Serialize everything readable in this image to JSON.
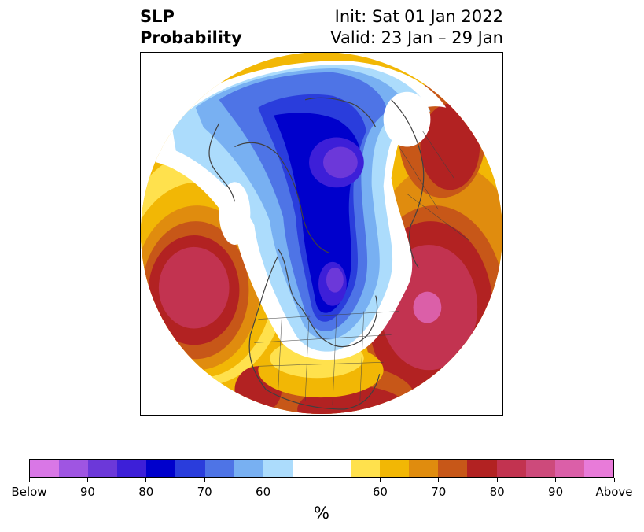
{
  "title": {
    "variable": "SLP",
    "product": "Probability",
    "init": "Init: Sat 01 Jan 2022",
    "valid": "Valid: 23 Jan – 29 Jan"
  },
  "map": {
    "projection": "north-polar-stereographic",
    "background": "white",
    "coastline_color": "#404040"
  },
  "colorbar": {
    "unit": "%",
    "colors": [
      "#d977e6",
      "#9f55e2",
      "#6c38d9",
      "#3d1fd8",
      "#0000cc",
      "#2a3ddc",
      "#4e74e6",
      "#78b0f2",
      "#acdcfc",
      "#ffffff",
      "#ffffff",
      "#ffe14d",
      "#f2b705",
      "#e08c0e",
      "#c75718",
      "#b22222",
      "#c23350",
      "#cd4a7b",
      "#db5fa8",
      "#e87bd9"
    ],
    "tick_labels": [
      "Below",
      "90",
      "80",
      "70",
      "60",
      "60",
      "70",
      "80",
      "90",
      "Above"
    ]
  }
}
